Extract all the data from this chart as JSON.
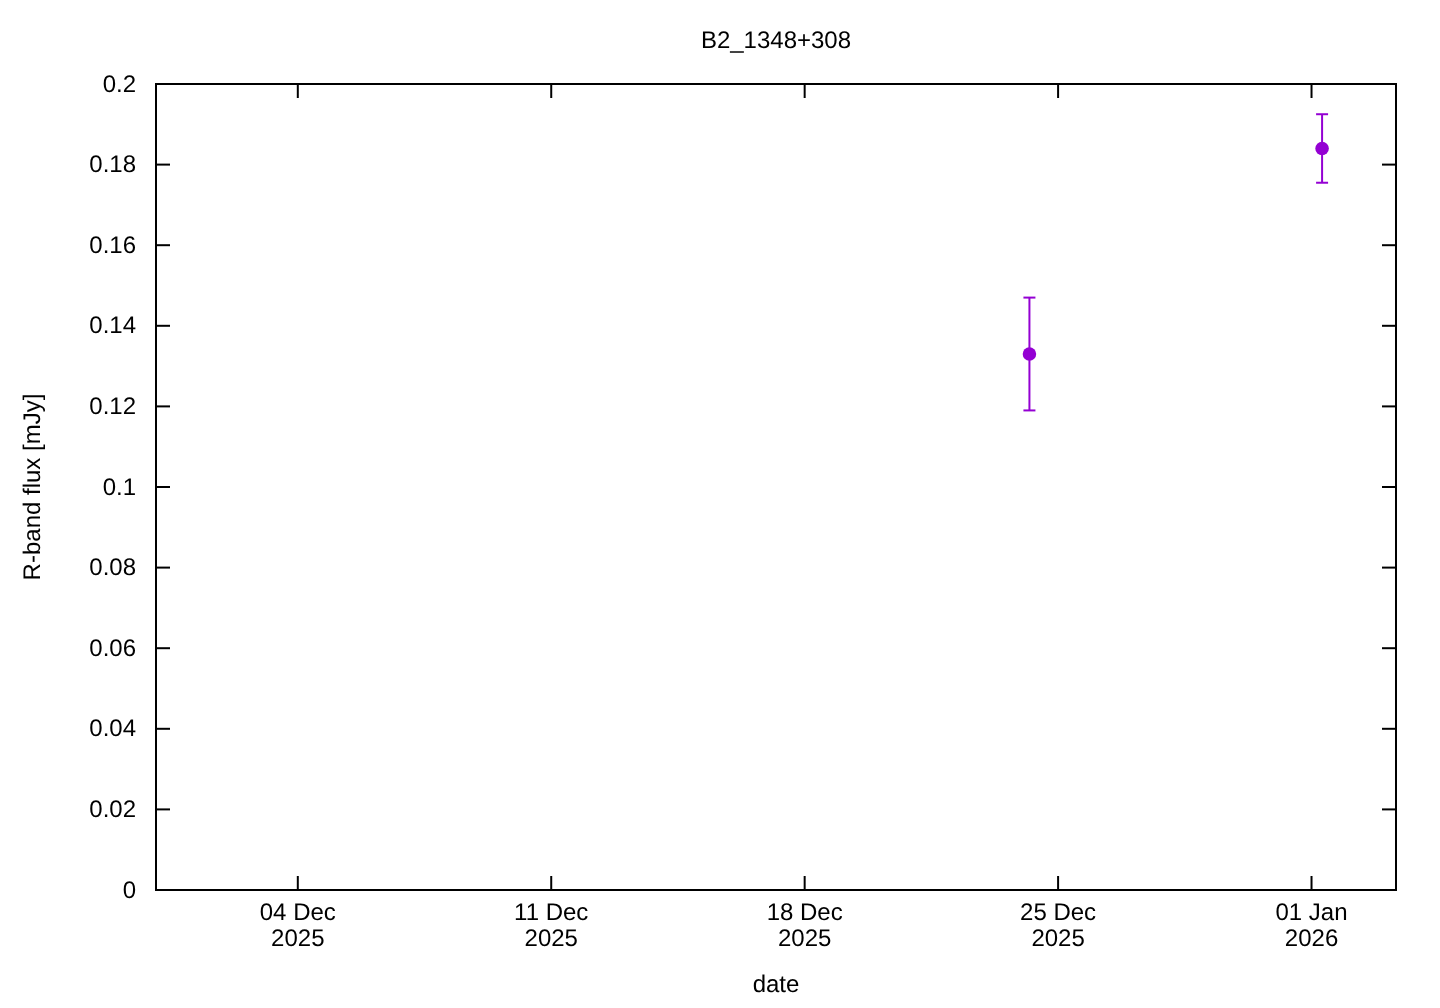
{
  "chart_data": {
    "type": "scatter",
    "title": "B2_1348+308",
    "xlabel": "date",
    "ylabel": "R-band flux [mJy]",
    "x": [
      "2025-12-24T05:00",
      "2026-01-01T07:00"
    ],
    "series": [
      {
        "color": "#9400d3",
        "values": [
          0.133,
          0.184
        ],
        "errors": [
          [
            0.119,
            0.147
          ],
          [
            0.1755,
            0.1925
          ]
        ]
      }
    ],
    "xlim": [
      "2025-11-30T02:00",
      "2026-01-03T08:00"
    ],
    "xticks": [
      {
        "value": "2025-12-04",
        "label": "04 Dec\n2025"
      },
      {
        "value": "2025-12-11",
        "label": "11 Dec\n2025"
      },
      {
        "value": "2025-12-18",
        "label": "18 Dec\n2025"
      },
      {
        "value": "2025-12-25",
        "label": "25 Dec\n2025"
      },
      {
        "value": "2026-01-01",
        "label": "01 Jan\n2026"
      }
    ],
    "ylim": [
      0,
      0.2
    ],
    "yticks": [
      0,
      0.02,
      0.04,
      0.06,
      0.08,
      0.1,
      0.12,
      0.14,
      0.16,
      0.18,
      0.2
    ],
    "marker": "circle",
    "grid": false
  }
}
